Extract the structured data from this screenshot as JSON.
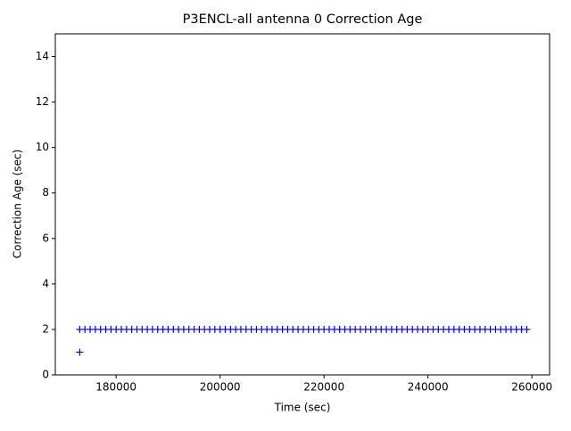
{
  "chart_data": {
    "type": "scatter",
    "title": "P3ENCL-all antenna 0 Correction Age",
    "x_label": "Time (sec)",
    "y_label": "Correction Age (sec)",
    "xlim": [
      168300,
      263400
    ],
    "ylim": [
      0,
      15
    ],
    "xticks": [
      180000,
      200000,
      220000,
      240000,
      260000
    ],
    "yticks": [
      0,
      2,
      4,
      6,
      8,
      10,
      12,
      14
    ],
    "marker": "+",
    "series": [
      {
        "color": "#0000ff",
        "x": [
          173000,
          173000,
          174000,
          175000,
          176000,
          177000,
          178000,
          179000,
          180000,
          181000,
          182000,
          183000,
          184000,
          185000,
          186000,
          187000,
          188000,
          189000,
          190000,
          191000,
          192000,
          193000,
          194000,
          195000,
          196000,
          197000,
          198000,
          199000,
          200000,
          201000,
          202000,
          203000,
          204000,
          205000,
          206000,
          207000,
          208000,
          209000,
          210000,
          211000,
          212000,
          213000,
          214000,
          215000,
          216000,
          217000,
          218000,
          219000,
          220000,
          221000,
          222000,
          223000,
          224000,
          225000,
          226000,
          227000,
          228000,
          229000,
          230000,
          231000,
          232000,
          233000,
          234000,
          235000,
          236000,
          237000,
          238000,
          239000,
          240000,
          241000,
          242000,
          243000,
          244000,
          245000,
          246000,
          247000,
          248000,
          249000,
          250000,
          251000,
          252000,
          253000,
          254000,
          255000,
          256000,
          257000,
          258000,
          259000
        ],
        "values": [
          1,
          2,
          2,
          2,
          2,
          2,
          2,
          2,
          2,
          2,
          2,
          2,
          2,
          2,
          2,
          2,
          2,
          2,
          2,
          2,
          2,
          2,
          2,
          2,
          2,
          2,
          2,
          2,
          2,
          2,
          2,
          2,
          2,
          2,
          2,
          2,
          2,
          2,
          2,
          2,
          2,
          2,
          2,
          2,
          2,
          2,
          2,
          2,
          2,
          2,
          2,
          2,
          2,
          2,
          2,
          2,
          2,
          2,
          2,
          2,
          2,
          2,
          2,
          2,
          2,
          2,
          2,
          2,
          2,
          2,
          2,
          2,
          2,
          2,
          2,
          2,
          2,
          2,
          2,
          2,
          2,
          2,
          2,
          2,
          2,
          2,
          2,
          2
        ]
      }
    ]
  }
}
